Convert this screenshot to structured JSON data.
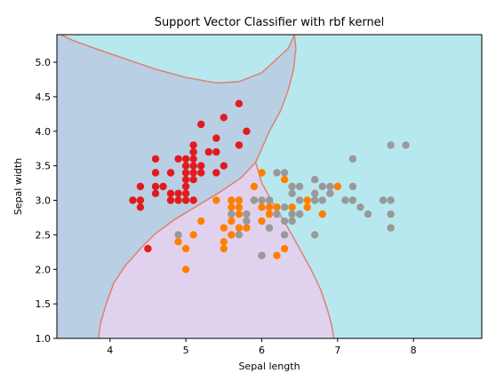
{
  "chart_data": {
    "type": "scatter",
    "title": "Support Vector Classifier with rbf kernel",
    "xlabel": "Sepal length",
    "ylabel": "Sepal width",
    "xlim": [
      3.3,
      8.9
    ],
    "ylim": [
      1.0,
      5.4
    ],
    "xticks": [
      4,
      5,
      6,
      7,
      8
    ],
    "yticks": [
      1.0,
      1.5,
      2.0,
      2.5,
      3.0,
      3.5,
      4.0,
      4.5,
      5.0
    ],
    "region_colors": {
      "class_0": "#b8cfe4",
      "class_1": "#e0d2ee",
      "class_2": "#b8e8ef"
    },
    "boundary_color": "#e0806f",
    "series": [
      {
        "color": "#e31a1c",
        "points": [
          [
            4.3,
            3.0
          ],
          [
            4.4,
            3.2
          ],
          [
            4.4,
            3.0
          ],
          [
            4.4,
            2.9
          ],
          [
            4.5,
            2.3
          ],
          [
            4.6,
            3.6
          ],
          [
            4.6,
            3.4
          ],
          [
            4.6,
            3.2
          ],
          [
            4.6,
            3.1
          ],
          [
            4.7,
            3.2
          ],
          [
            4.8,
            3.4
          ],
          [
            4.8,
            3.1
          ],
          [
            4.8,
            3.0
          ],
          [
            4.9,
            3.6
          ],
          [
            4.9,
            3.1
          ],
          [
            4.9,
            3.0
          ],
          [
            5.0,
            3.6
          ],
          [
            5.0,
            3.5
          ],
          [
            5.0,
            3.4
          ],
          [
            5.0,
            3.3
          ],
          [
            5.0,
            3.2
          ],
          [
            5.0,
            3.0
          ],
          [
            5.1,
            3.8
          ],
          [
            5.1,
            3.7
          ],
          [
            5.1,
            3.5
          ],
          [
            5.1,
            3.4
          ],
          [
            5.1,
            3.3
          ],
          [
            5.2,
            4.1
          ],
          [
            5.2,
            3.5
          ],
          [
            5.2,
            3.4
          ],
          [
            5.3,
            3.7
          ],
          [
            5.4,
            3.9
          ],
          [
            5.4,
            3.7
          ],
          [
            5.4,
            3.4
          ],
          [
            5.5,
            4.2
          ],
          [
            5.5,
            3.5
          ],
          [
            5.7,
            4.4
          ],
          [
            5.7,
            3.8
          ],
          [
            5.8,
            4.0
          ],
          [
            5.1,
            3.0
          ],
          [
            5.1,
            3.6
          ],
          [
            5.0,
            3.1
          ]
        ]
      },
      {
        "color": "#ff7f00",
        "points": [
          [
            4.9,
            2.4
          ],
          [
            5.0,
            2.0
          ],
          [
            5.0,
            2.3
          ],
          [
            5.1,
            2.5
          ],
          [
            5.2,
            2.7
          ],
          [
            5.4,
            3.0
          ],
          [
            5.5,
            2.4
          ],
          [
            5.5,
            2.3
          ],
          [
            5.5,
            2.6
          ],
          [
            5.6,
            2.9
          ],
          [
            5.6,
            3.0
          ],
          [
            5.6,
            2.5
          ],
          [
            5.6,
            2.7
          ],
          [
            5.7,
            2.8
          ],
          [
            5.7,
            3.0
          ],
          [
            5.7,
            2.9
          ],
          [
            5.7,
            2.6
          ],
          [
            5.8,
            2.7
          ],
          [
            5.9,
            3.0
          ],
          [
            5.9,
            3.2
          ],
          [
            6.0,
            2.2
          ],
          [
            6.0,
            2.9
          ],
          [
            6.0,
            2.7
          ],
          [
            6.0,
            3.4
          ],
          [
            6.1,
            2.8
          ],
          [
            6.1,
            2.9
          ],
          [
            6.1,
            3.0
          ],
          [
            6.2,
            2.9
          ],
          [
            6.2,
            2.2
          ],
          [
            6.3,
            2.3
          ],
          [
            6.3,
            2.5
          ],
          [
            6.3,
            3.3
          ],
          [
            6.4,
            2.9
          ],
          [
            6.4,
            3.2
          ],
          [
            6.5,
            2.8
          ],
          [
            6.6,
            2.9
          ],
          [
            6.6,
            3.0
          ],
          [
            6.7,
            3.1
          ],
          [
            6.7,
            3.0
          ],
          [
            6.8,
            2.8
          ],
          [
            6.9,
            3.1
          ],
          [
            7.0,
            3.2
          ],
          [
            5.8,
            2.6
          ]
        ]
      },
      {
        "color": "#999999",
        "points": [
          [
            4.9,
            2.5
          ],
          [
            5.6,
            2.8
          ],
          [
            5.7,
            2.5
          ],
          [
            5.8,
            2.8
          ],
          [
            5.8,
            2.7
          ],
          [
            5.9,
            3.0
          ],
          [
            6.0,
            2.2
          ],
          [
            6.0,
            3.0
          ],
          [
            6.1,
            2.6
          ],
          [
            6.1,
            3.0
          ],
          [
            6.2,
            3.4
          ],
          [
            6.2,
            2.8
          ],
          [
            6.3,
            2.9
          ],
          [
            6.3,
            2.7
          ],
          [
            6.3,
            2.5
          ],
          [
            6.3,
            3.4
          ],
          [
            6.4,
            2.7
          ],
          [
            6.4,
            2.8
          ],
          [
            6.4,
            3.1
          ],
          [
            6.4,
            3.2
          ],
          [
            6.5,
            3.0
          ],
          [
            6.5,
            3.2
          ],
          [
            6.5,
            2.8
          ],
          [
            6.7,
            2.5
          ],
          [
            6.7,
            3.3
          ],
          [
            6.7,
            3.0
          ],
          [
            6.8,
            3.0
          ],
          [
            6.8,
            3.2
          ],
          [
            6.9,
            3.2
          ],
          [
            6.9,
            3.1
          ],
          [
            7.1,
            3.0
          ],
          [
            7.2,
            3.6
          ],
          [
            7.2,
            3.2
          ],
          [
            7.2,
            3.0
          ],
          [
            7.3,
            2.9
          ],
          [
            7.4,
            2.8
          ],
          [
            7.6,
            3.0
          ],
          [
            7.7,
            3.8
          ],
          [
            7.7,
            3.0
          ],
          [
            7.7,
            2.8
          ],
          [
            7.7,
            2.6
          ],
          [
            7.9,
            3.8
          ],
          [
            6.1,
            3.0
          ],
          [
            6.7,
            3.1
          ]
        ]
      }
    ]
  }
}
